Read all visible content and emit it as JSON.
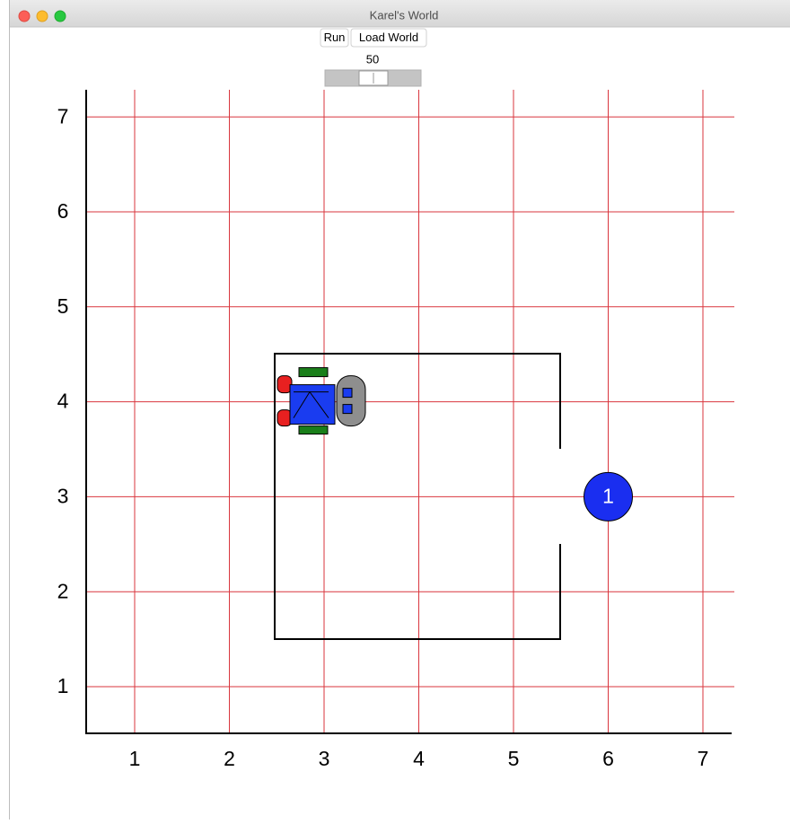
{
  "window": {
    "title": "Karel's World"
  },
  "toolbar": {
    "buttons": [
      "Run",
      "Load World"
    ]
  },
  "slider": {
    "value": "50"
  },
  "world": {
    "columns": [
      1,
      2,
      3,
      4,
      5,
      6,
      7
    ],
    "rows": [
      1,
      2,
      3,
      4,
      5,
      6,
      7
    ],
    "beepers": [
      {
        "x": 6,
        "y": 3,
        "count": 1
      }
    ],
    "karel": {
      "x": 3,
      "y": 4
    }
  }
}
